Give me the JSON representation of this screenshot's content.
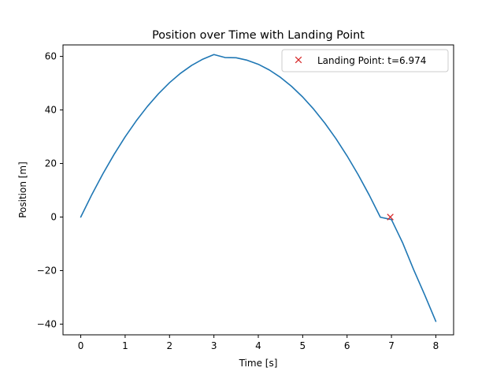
{
  "chart_data": {
    "type": "line",
    "title": "Position over Time with Landing Point",
    "xlabel": "Time [s]",
    "ylabel": "Position [m]",
    "xlim": [
      -0.4,
      8.4
    ],
    "ylim": [
      -44.0,
      64.3
    ],
    "xticks": [
      0,
      1,
      2,
      3,
      4,
      5,
      6,
      7,
      8
    ],
    "xtick_labels": [
      "0",
      "1",
      "2",
      "3",
      "4",
      "5",
      "6",
      "7",
      "8"
    ],
    "yticks": [
      -40,
      -20,
      0,
      20,
      40,
      60
    ],
    "ytick_labels": [
      "−40",
      "−20",
      "0",
      "20",
      "40",
      "60"
    ],
    "grid": false,
    "legend_position": "upper right",
    "series": [
      {
        "color": "#1f77b4",
        "x": [
          0.0,
          0.25,
          0.5,
          0.75,
          1.0,
          1.25,
          1.5,
          1.75,
          2.0,
          2.25,
          2.5,
          2.75,
          3.0,
          3.25,
          3.5,
          3.75,
          4.0,
          4.25,
          4.5,
          4.75,
          5.0,
          5.25,
          5.5,
          5.75,
          6.0,
          6.25,
          6.5,
          6.75,
          7.0,
          7.25,
          7.5,
          7.75,
          8.0
        ],
        "y": [
          0.0,
          8.4,
          16.19,
          23.38,
          29.96,
          35.93,
          41.29,
          46.04,
          50.19,
          53.73,
          56.66,
          58.98,
          60.7,
          59.58,
          59.49,
          58.58,
          57.06,
          54.92,
          52.17,
          48.81,
          44.84,
          40.26,
          35.06,
          29.26,
          22.84,
          15.82,
          8.18,
          -0.07,
          -0.94,
          -9.56,
          -19.65,
          -29.12,
          -38.98
        ]
      }
    ],
    "markers": [
      {
        "label": "Landing Point: t=6.974",
        "x": 6.974,
        "y": 0,
        "symbol": "x",
        "color": "#d62728"
      }
    ]
  }
}
